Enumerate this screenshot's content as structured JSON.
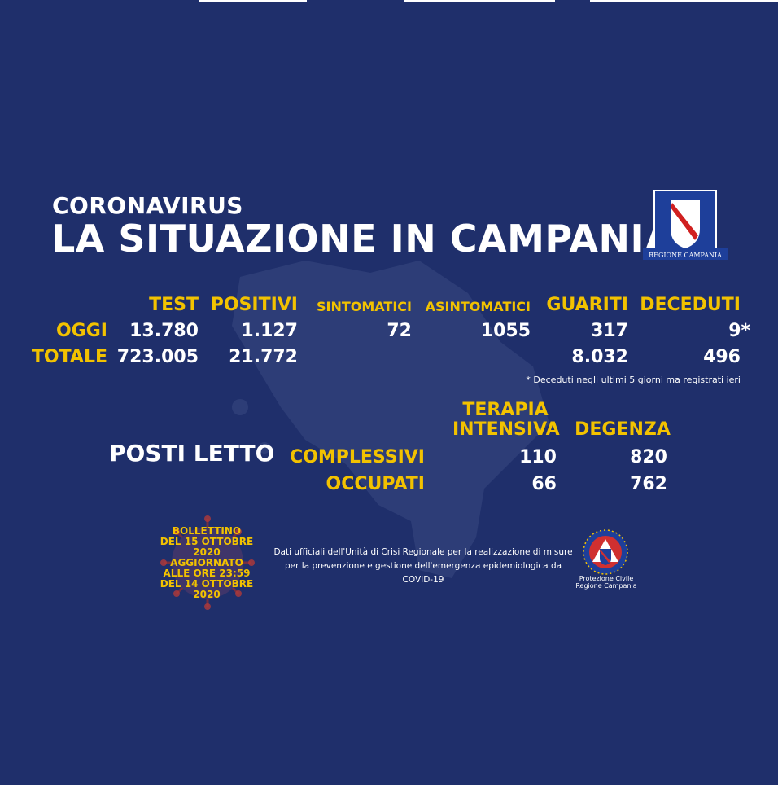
{
  "header": {
    "small_title": "CORONAVIRUS",
    "big_title": "LA SITUAZIONE IN CAMPANIA"
  },
  "logo": {
    "text": "REGIONE CAMPANIA",
    "icon": "regione-campania-shield-icon"
  },
  "table": {
    "headers": {
      "test": "TEST",
      "positivi": "POSITIVI",
      "sintomatici": "SINTOMATICI",
      "asintomatici": "ASINTOMATICI",
      "guariti": "GUARITI",
      "deceduti": "DECEDUTI"
    },
    "oggi": {
      "label": "OGGI",
      "test": "13.780",
      "positivi": "1.127",
      "sintomatici": "72",
      "asintomatici": "1055",
      "guariti": "317",
      "deceduti": "9*"
    },
    "totale": {
      "label": "TOTALE",
      "test": "723.005",
      "positivi": "21.772",
      "guariti": "8.032",
      "deceduti": "496"
    },
    "note": "* Deceduti negli ultimi 5 giorni ma registrati ieri"
  },
  "beds": {
    "title": "POSTI LETTO",
    "col_intensiva_line1": "TERAPIA",
    "col_intensiva_line2": "INTENSIVA",
    "col_degenza": "DEGENZA",
    "complessivi": {
      "label": "COMPLESSIVI",
      "intensiva": "110",
      "degenza": "820"
    },
    "occupati": {
      "label": "OCCUPATI",
      "intensiva": "66",
      "degenza": "762"
    }
  },
  "bulletin": {
    "line1": "BOLLETTINO",
    "line2": "DEL 15 OTTOBRE 2020",
    "line3": "AGGIORNATO",
    "line4": "ALLE ORE 23:59",
    "line5": "DEL 14 OTTOBRE 2020"
  },
  "official": {
    "line1": "Dati ufficiali dell'Unità di Crisi Regionale per la realizzazione di misure",
    "line2": "per la prevenzione e gestione dell'emergenza epidemiologica da COVID-19"
  },
  "protezione_civile": {
    "line1": "Protezione Civile",
    "line2": "Regione Campania",
    "icon": "protezione-civile-icon"
  },
  "colors": {
    "background": "#1f2f6b",
    "accent": "#f2c200",
    "text": "#ffffff"
  }
}
